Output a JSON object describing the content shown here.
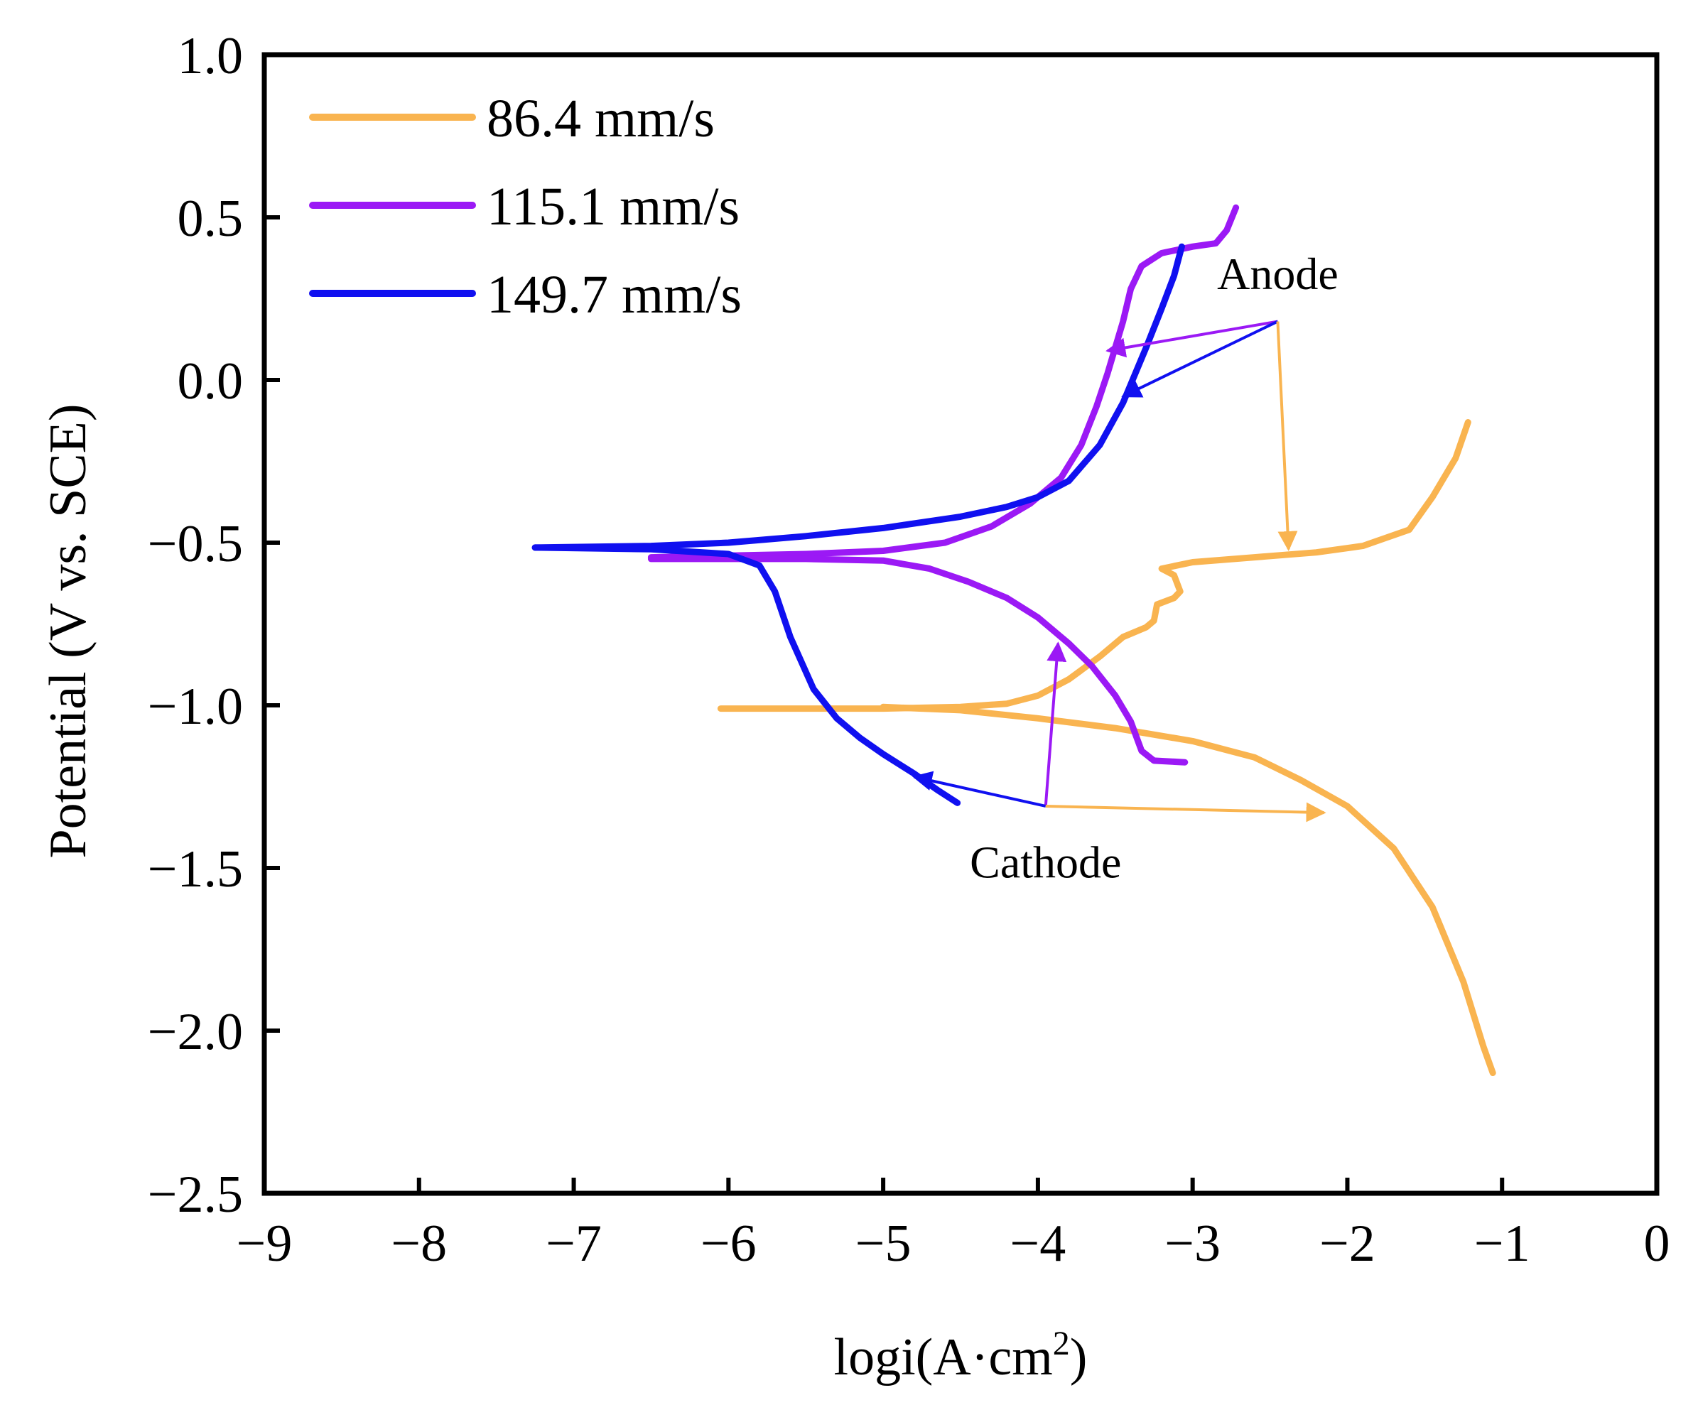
{
  "chart_data": {
    "type": "line",
    "title": "",
    "xlabel": "logi(A·cm",
    "xlabel_sup": "2",
    "xlabel_close": ")",
    "ylabel": "Potential (V vs. SCE)",
    "xlim": [
      -9,
      0
    ],
    "ylim": [
      -2.5,
      1.0
    ],
    "x_ticks": [
      -9,
      -8,
      -7,
      -6,
      -5,
      -4,
      -3,
      -2,
      -1,
      0
    ],
    "x_tick_labels": [
      "−9",
      "−8",
      "−7",
      "−6",
      "−5",
      "−4",
      "−3",
      "−2",
      "−1",
      "0"
    ],
    "y_ticks": [
      1.0,
      0.5,
      0.0,
      -0.5,
      -1.0,
      -1.5,
      -2.0,
      -2.5
    ],
    "y_tick_labels": [
      "1.0",
      "0.5",
      "0.0",
      "−0.5",
      "−1.0",
      "−1.5",
      "−2.0",
      "−2.5"
    ],
    "grid": false,
    "legend_position": "top-left",
    "series": [
      {
        "name": "86.4 mm/s",
        "color": "#F9B450",
        "segments": [
          [
            [
              -6.05,
              -1.01
            ],
            [
              -5.5,
              -1.01
            ],
            [
              -5.0,
              -1.01
            ],
            [
              -4.5,
              -1.005
            ],
            [
              -4.2,
              -0.995
            ],
            [
              -4.0,
              -0.97
            ],
            [
              -3.8,
              -0.92
            ],
            [
              -3.6,
              -0.85
            ],
            [
              -3.45,
              -0.79
            ],
            [
              -3.3,
              -0.76
            ],
            [
              -3.25,
              -0.74
            ],
            [
              -3.23,
              -0.69
            ],
            [
              -3.12,
              -0.67
            ],
            [
              -3.08,
              -0.65
            ],
            [
              -3.12,
              -0.6
            ],
            [
              -3.2,
              -0.58
            ],
            [
              -3.0,
              -0.56
            ],
            [
              -2.6,
              -0.545
            ],
            [
              -2.2,
              -0.53
            ],
            [
              -1.9,
              -0.51
            ],
            [
              -1.6,
              -0.46
            ],
            [
              -1.45,
              -0.36
            ],
            [
              -1.3,
              -0.24
            ],
            [
              -1.22,
              -0.13
            ]
          ],
          [
            [
              -5.0,
              -1.005
            ],
            [
              -4.5,
              -1.015
            ],
            [
              -4.0,
              -1.04
            ],
            [
              -3.5,
              -1.07
            ],
            [
              -3.0,
              -1.11
            ],
            [
              -2.6,
              -1.16
            ],
            [
              -2.3,
              -1.23
            ],
            [
              -2.0,
              -1.31
            ],
            [
              -1.7,
              -1.44
            ],
            [
              -1.45,
              -1.62
            ],
            [
              -1.25,
              -1.85
            ],
            [
              -1.12,
              -2.05
            ],
            [
              -1.06,
              -2.13
            ]
          ]
        ]
      },
      {
        "name": "115.1 mm/s",
        "color": "#9B19F5",
        "segments": [
          [
            [
              -6.5,
              -0.545
            ],
            [
              -6.0,
              -0.54
            ],
            [
              -5.5,
              -0.535
            ],
            [
              -5.0,
              -0.525
            ],
            [
              -4.6,
              -0.5
            ],
            [
              -4.3,
              -0.45
            ],
            [
              -4.05,
              -0.38
            ],
            [
              -3.85,
              -0.3
            ],
            [
              -3.72,
              -0.2
            ],
            [
              -3.62,
              -0.08
            ],
            [
              -3.55,
              0.02
            ],
            [
              -3.5,
              0.1
            ],
            [
              -3.45,
              0.18
            ],
            [
              -3.4,
              0.28
            ],
            [
              -3.33,
              0.35
            ],
            [
              -3.2,
              0.39
            ],
            [
              -3.0,
              0.41
            ],
            [
              -2.85,
              0.42
            ],
            [
              -2.78,
              0.46
            ],
            [
              -2.72,
              0.53
            ]
          ],
          [
            [
              -6.5,
              -0.55
            ],
            [
              -6.0,
              -0.55
            ],
            [
              -5.5,
              -0.55
            ],
            [
              -5.0,
              -0.555
            ],
            [
              -4.7,
              -0.58
            ],
            [
              -4.45,
              -0.62
            ],
            [
              -4.2,
              -0.67
            ],
            [
              -4.0,
              -0.73
            ],
            [
              -3.8,
              -0.81
            ],
            [
              -3.65,
              -0.88
            ],
            [
              -3.5,
              -0.97
            ],
            [
              -3.4,
              -1.05
            ],
            [
              -3.33,
              -1.14
            ],
            [
              -3.25,
              -1.17
            ],
            [
              -3.05,
              -1.175
            ]
          ]
        ]
      },
      {
        "name": "149.7 mm/s",
        "color": "#1010F0",
        "segments": [
          [
            [
              -7.25,
              -0.515
            ],
            [
              -6.5,
              -0.51
            ],
            [
              -6.0,
              -0.5
            ],
            [
              -5.5,
              -0.48
            ],
            [
              -5.0,
              -0.455
            ],
            [
              -4.5,
              -0.42
            ],
            [
              -4.2,
              -0.39
            ],
            [
              -4.0,
              -0.36
            ],
            [
              -3.8,
              -0.31
            ],
            [
              -3.6,
              -0.2
            ],
            [
              -3.45,
              -0.07
            ],
            [
              -3.3,
              0.1
            ],
            [
              -3.2,
              0.22
            ],
            [
              -3.12,
              0.32
            ],
            [
              -3.07,
              0.41
            ]
          ],
          [
            [
              -7.25,
              -0.515
            ],
            [
              -6.5,
              -0.52
            ],
            [
              -6.0,
              -0.535
            ],
            [
              -5.8,
              -0.57
            ],
            [
              -5.7,
              -0.65
            ],
            [
              -5.6,
              -0.79
            ],
            [
              -5.45,
              -0.95
            ],
            [
              -5.3,
              -1.04
            ],
            [
              -5.15,
              -1.1
            ],
            [
              -5.0,
              -1.15
            ],
            [
              -4.8,
              -1.21
            ],
            [
              -4.65,
              -1.26
            ],
            [
              -4.52,
              -1.3
            ]
          ]
        ]
      }
    ],
    "annotations": [
      {
        "text": "Anode",
        "text_at": [
          -2.45,
          0.28
        ],
        "arrows": [
          {
            "from": [
              -2.45,
              0.18
            ],
            "to": [
              -3.55,
              0.09
            ],
            "color": "#9B19F5"
          },
          {
            "from": [
              -2.45,
              0.18
            ],
            "to": [
              -3.45,
              -0.05
            ],
            "color": "#1010F0"
          },
          {
            "from": [
              -2.45,
              0.18
            ],
            "to": [
              -2.38,
              -0.52
            ],
            "color": "#F9B450"
          }
        ]
      },
      {
        "text": "Cathode",
        "text_at": [
          -3.95,
          -1.53
        ],
        "arrows": [
          {
            "from": [
              -3.95,
              -1.31
            ],
            "to": [
              -3.87,
              -0.81
            ],
            "color": "#9B19F5"
          },
          {
            "from": [
              -3.95,
              -1.31
            ],
            "to": [
              -4.8,
              -1.22
            ],
            "color": "#1010F0"
          },
          {
            "from": [
              -3.95,
              -1.31
            ],
            "to": [
              -2.15,
              -1.33
            ],
            "color": "#F9B450"
          }
        ]
      }
    ]
  }
}
